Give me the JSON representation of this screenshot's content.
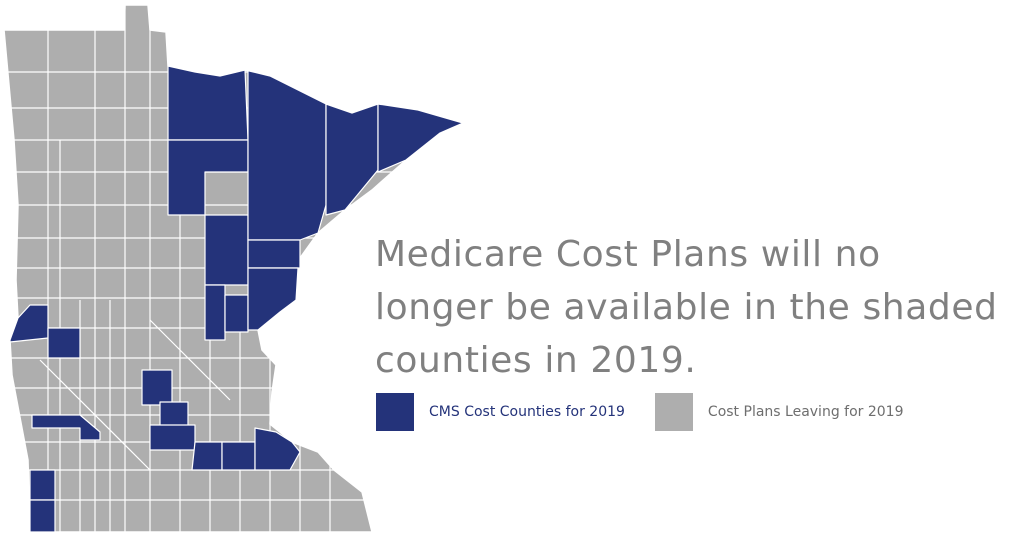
{
  "headline": {
    "line1": "Medicare Cost Plans will no",
    "line2": "longer be available in the shaded",
    "line3": "counties in 2019."
  },
  "legend": {
    "items": [
      {
        "label": "CMS Cost Counties for 2019",
        "color": "#24337a"
      },
      {
        "label": "Cost Plans Leaving for 2019",
        "color": "#aeaeae"
      }
    ]
  },
  "map": {
    "state": "Minnesota",
    "colors": {
      "shaded": "#24337a",
      "unshaded": "#aeaeae",
      "border": "#ffffff"
    },
    "shaded_counties": [
      "Lake of the Woods",
      "Koochiching",
      "Itasca",
      "Aitkin",
      "Carlton",
      "Pine",
      "Kanabec",
      "St. Louis",
      "Lake",
      "Cook",
      "Grant",
      "Stevens",
      "Chippewa",
      "Meeker",
      "McLeod",
      "Scott",
      "Rice",
      "Goodhue",
      "Wabasha",
      "Dodge",
      "Olmsted",
      "Winona",
      "Pipestone",
      "Rock",
      "Murray",
      "Nobles",
      "Lyon",
      "Redwood"
    ]
  }
}
